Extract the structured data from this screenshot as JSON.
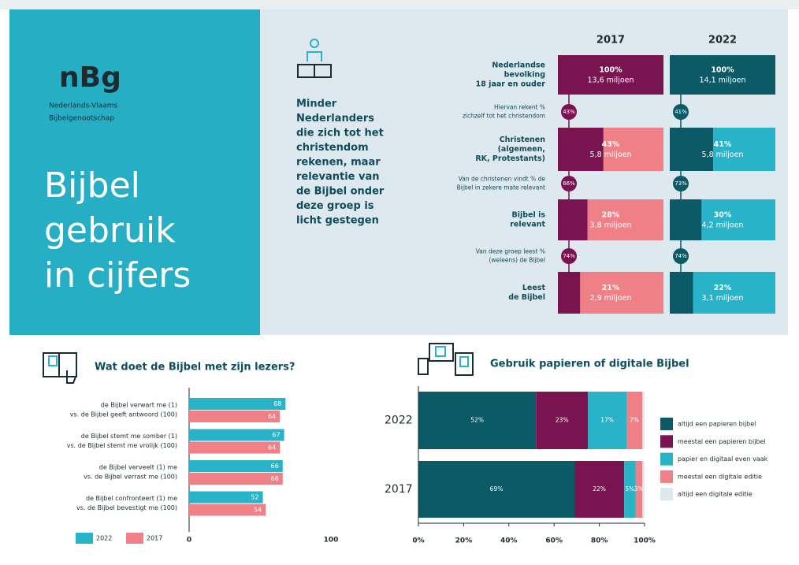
{
  "header": {
    "logo": "nBg",
    "org_lines": [
      "Nederlands-Vlaams",
      "Bijbelgenootschap"
    ],
    "title_lines": [
      "Bijbel",
      "gebruik",
      "in cijfers"
    ]
  },
  "summary_lines": [
    "Minder",
    "Nederlanders",
    "die zich tot het",
    "christendom",
    "rekenen, maar",
    "relevantie van",
    "de Bijbel onder",
    "deze groep is",
    "licht gestegen"
  ],
  "funnel": {
    "years": [
      "2017",
      "2022"
    ],
    "colors": {
      "2017": [
        "#7a1451",
        "#f08088"
      ],
      "2022": [
        "#0b5a66",
        "#29b3c9"
      ]
    },
    "rows": [
      {
        "label": [
          "Nederlandse",
          "bevolking",
          "18 jaar en ouder"
        ],
        "values": [
          100,
          100
        ],
        "value_labels": [
          "100%",
          "100%"
        ],
        "counts": [
          "13,6 miljoen",
          "14,1 miljoen"
        ]
      },
      {
        "label": [
          "Christenen",
          "(algemeen,",
          "RK, Protestants)"
        ],
        "values": [
          43,
          41
        ],
        "value_labels": [
          "43%",
          "41%"
        ],
        "counts": [
          "5,8 miljoen",
          "5,8 miljoen"
        ]
      },
      {
        "label": [
          "Bijbel is",
          "relevant"
        ],
        "values": [
          28,
          30
        ],
        "value_labels": [
          "28%",
          "30%"
        ],
        "counts": [
          "3,8 miljoen",
          "4,2 miljoen"
        ]
      },
      {
        "label": [
          "Leest",
          "de Bijbel"
        ],
        "values": [
          21,
          22
        ],
        "value_labels": [
          "21%",
          "22%"
        ],
        "counts": [
          "2,9 miljoen",
          "3,1 miljoen"
        ]
      }
    ],
    "steps": [
      {
        "label": [
          "Hiervan rekent %",
          "zichzelf tot het christendom"
        ],
        "values": [
          43,
          41
        ],
        "value_labels": [
          "43%",
          "41%"
        ]
      },
      {
        "label": [
          "Van de christenen vindt % de",
          "Bijbel in zekere mate relevant"
        ],
        "values": [
          66,
          73
        ],
        "value_labels": [
          "66%",
          "73%"
        ]
      },
      {
        "label": [
          "Van deze groep leest %",
          "(weleens) de Bijbel"
        ],
        "values": [
          74,
          74
        ],
        "value_labels": [
          "74%",
          "74%"
        ]
      }
    ]
  },
  "chart_data": [
    {
      "type": "hbar",
      "title": "Wat doet de Bijbel met zijn lezers?",
      "categories": [
        [
          "de Bijbel verwart me (1)",
          "vs. de Bijbel geeft antwoord (100)"
        ],
        [
          "de Bijbel stemt me somber (1)",
          "vs. de Bijbel stemt me vrolijk (100)"
        ],
        [
          "de Bijbel verveelt (1) me",
          "vs. de Bijbel verrast me (100)"
        ],
        [
          "de Bijbel confronteert (1) me",
          "vs. de Bijbel bevestigt me (100)"
        ]
      ],
      "series": [
        {
          "name": "2022",
          "color": "#29b3c9",
          "values": [
            68,
            67,
            66,
            52
          ]
        },
        {
          "name": "2017",
          "color": "#f08088",
          "values": [
            64,
            64,
            66,
            54
          ]
        }
      ],
      "xlim": [
        0,
        100
      ],
      "xticks": [
        0,
        100
      ]
    },
    {
      "type": "stacked_hbar",
      "title": "Gebruik papieren of digitale Bijbel",
      "categories": [
        "2022",
        "2017"
      ],
      "series": [
        {
          "name": "altijd een papieren bijbel",
          "color": "#0b5a66",
          "values": [
            52,
            69
          ],
          "value_labels": [
            "52%",
            "69%"
          ]
        },
        {
          "name": "meestal een papieren bijbel",
          "color": "#7a1451",
          "values": [
            23,
            22
          ],
          "value_labels": [
            "23%",
            "22%"
          ]
        },
        {
          "name": "papier en digitaal even vaak",
          "color": "#29b3c9",
          "values": [
            17,
            5
          ],
          "value_labels": [
            "17%",
            "5%"
          ]
        },
        {
          "name": "meestal een digitale editie",
          "color": "#f08088",
          "values": [
            7,
            3
          ],
          "value_labels": [
            "7%",
            "3%"
          ]
        },
        {
          "name": "altijd een digitale editie",
          "color": "#dce8ec",
          "values": [
            1,
            1
          ]
        }
      ],
      "xlim": [
        0,
        100
      ],
      "xticks": [
        {
          "value": 0,
          "label": "0%"
        },
        {
          "value": 20,
          "label": "20%"
        },
        {
          "value": 40,
          "label": "40%"
        },
        {
          "value": 60,
          "label": "60%"
        },
        {
          "value": 80,
          "label": "80%"
        },
        {
          "value": 100,
          "label": "100%"
        }
      ]
    }
  ]
}
